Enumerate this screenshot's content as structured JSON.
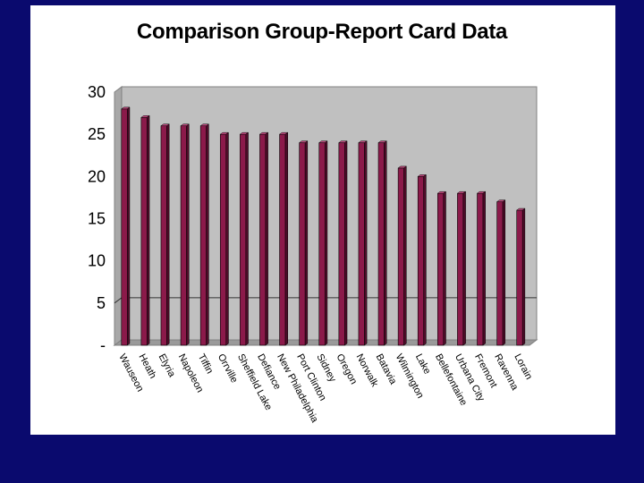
{
  "colors": {
    "background": "#0a0a6e",
    "slide": "#ffffff",
    "plot_area": "#c0c0c0",
    "bar_front": "#8b1a4a",
    "bar_top": "#c2497f",
    "bar_side": "#4f0c29",
    "gridline": "#333333"
  },
  "chart_data": {
    "type": "bar",
    "title": "Comparison Group-Report Card Data",
    "xlabel": "",
    "ylabel": "",
    "ylim": [
      0,
      30
    ],
    "yticks": [
      {
        "value": 30,
        "label": "30"
      },
      {
        "value": 25,
        "label": "25"
      },
      {
        "value": 20,
        "label": "20"
      },
      {
        "value": 15,
        "label": "15"
      },
      {
        "value": 10,
        "label": "10"
      },
      {
        "value": 5,
        "label": "5"
      },
      {
        "value": 0,
        "label": "-"
      }
    ],
    "grid": "single gridline at 5",
    "style": "3d-column",
    "categories": [
      "Wauseon",
      "Heath",
      "Elyria",
      "Napoleon",
      "Tiffin",
      "Orrville",
      "Sheffield Lake",
      "Defiance",
      "New Philadelphia",
      "Port Clinton",
      "Sidney",
      "Oregon",
      "Norwalk",
      "Batavia",
      "Wilmington",
      "Lake",
      "Bellefontaine",
      "Urbana City",
      "Fremont",
      "Ravenna",
      "Lorain"
    ],
    "values": [
      28,
      27,
      26,
      26,
      26,
      25,
      25,
      25,
      25,
      24,
      24,
      24,
      24,
      24,
      21,
      20,
      18,
      18,
      18,
      17,
      16
    ]
  }
}
